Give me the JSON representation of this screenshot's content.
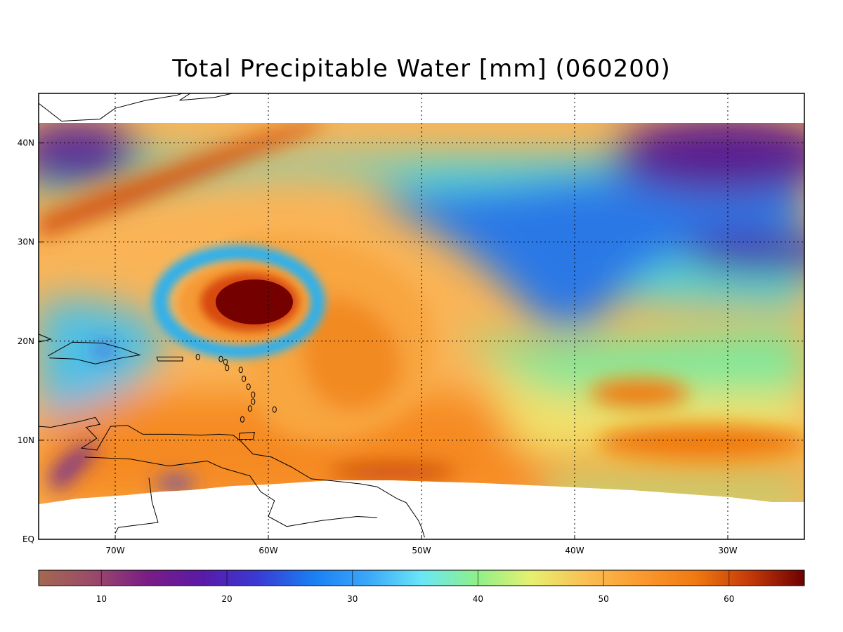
{
  "title": "Total Precipitable Water [mm]  (060200)",
  "map": {
    "lat_labels": [
      "40N",
      "30N",
      "20N",
      "10N",
      "EQ"
    ],
    "lon_labels": [
      "70W",
      "60W",
      "50W",
      "40W",
      "30W"
    ],
    "lat_ticks": [
      40,
      30,
      20,
      10,
      0
    ],
    "lon_ticks": [
      -70,
      -60,
      -50,
      -40,
      -30
    ],
    "extent": {
      "lon_min": -75,
      "lon_max": -25,
      "lat_min": 0,
      "lat_max": 45
    },
    "data_extent_lat_max": 42
  },
  "colorbar": {
    "min": 5,
    "max": 66,
    "labels": [
      "10",
      "20",
      "30",
      "40",
      "50",
      "60"
    ],
    "values": [
      10,
      20,
      30,
      40,
      50,
      60
    ],
    "colors": [
      "#a4684f",
      "#9a4a6a",
      "#7a1c86",
      "#5a1aa8",
      "#3a3ad4",
      "#1a7ef2",
      "#3aa6fa",
      "#6ae6f6",
      "#8ef08a",
      "#e6f070",
      "#fac054",
      "#fa9a30",
      "#f07a10",
      "#c43a08",
      "#6e0000"
    ],
    "unit": "mm"
  }
}
